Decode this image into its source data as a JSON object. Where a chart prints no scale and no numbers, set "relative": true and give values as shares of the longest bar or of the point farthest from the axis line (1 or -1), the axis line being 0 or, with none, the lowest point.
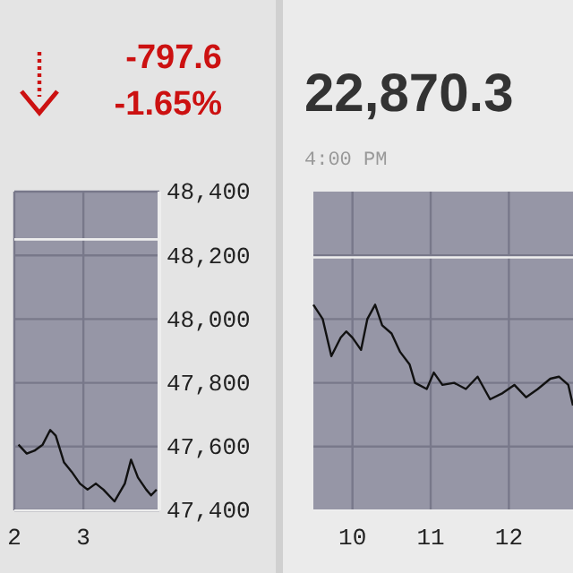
{
  "chart_data": [
    {
      "type": "line",
      "annotations": [
        "-797.6",
        "-1.65%"
      ],
      "x": [
        2.06,
        2.18,
        2.29,
        2.41,
        2.52,
        2.6,
        2.72,
        2.83,
        2.95,
        3.06,
        3.18,
        3.29,
        3.45,
        3.6,
        3.69,
        3.79,
        3.91,
        3.98,
        4.06
      ],
      "series": [
        {
          "color": "#111111",
          "values": [
            47606,
            47578,
            47587,
            47606,
            47652,
            47634,
            47550,
            47521,
            47484,
            47465,
            47484,
            47465,
            47428,
            47484,
            47559,
            47503,
            47465,
            47447,
            47465
          ]
        }
      ],
      "xlim": [
        2,
        4.1
      ],
      "xticks": [
        2,
        3
      ],
      "ylim": [
        47400,
        48400
      ],
      "yticks": [
        {
          "value": 47400,
          "label": "47,400"
        },
        {
          "value": 47600,
          "label": "47,600"
        },
        {
          "value": 47800,
          "label": "47,800"
        },
        {
          "value": 48000,
          "label": "48,000"
        },
        {
          "value": 48200,
          "label": "48,200"
        },
        {
          "value": 48400,
          "label": "48,400"
        }
      ],
      "ref_lines": [
        {
          "axis": "y",
          "value": 48250,
          "color": "#eeeeee"
        }
      ],
      "grid": true,
      "line_style": "solid",
      "marker": "none"
    },
    {
      "type": "line",
      "title": "22,870.3",
      "subtitle": "4:00 PM",
      "relative": true,
      "x": [
        9.5,
        9.62,
        9.73,
        9.85,
        9.92,
        10,
        10.11,
        10.19,
        10.29,
        10.38,
        10.5,
        10.61,
        10.73,
        10.8,
        10.95,
        11.04,
        11.15,
        11.3,
        11.45,
        11.6,
        11.76,
        11.92,
        12.07,
        12.22,
        12.37,
        12.53,
        12.64,
        12.76,
        12.82
      ],
      "series": [
        {
          "color": "#111111",
          "values": [
            1,
            0.93,
            0.75,
            0.84,
            0.87,
            0.84,
            0.78,
            0.93,
            1,
            0.9,
            0.86,
            0.77,
            0.71,
            0.62,
            0.59,
            0.67,
            0.61,
            0.62,
            0.59,
            0.65,
            0.54,
            0.57,
            0.61,
            0.55,
            0.59,
            0.64,
            0.65,
            0.61,
            0.51
          ]
        }
      ],
      "xlim": [
        9.5,
        12.82
      ],
      "xticks": [
        10,
        11,
        12
      ],
      "ref_lines": [
        {
          "axis": "y",
          "value": 1.23,
          "color": "#eeeeee"
        }
      ],
      "grid": "x",
      "line_style": "solid",
      "marker": "none"
    }
  ]
}
